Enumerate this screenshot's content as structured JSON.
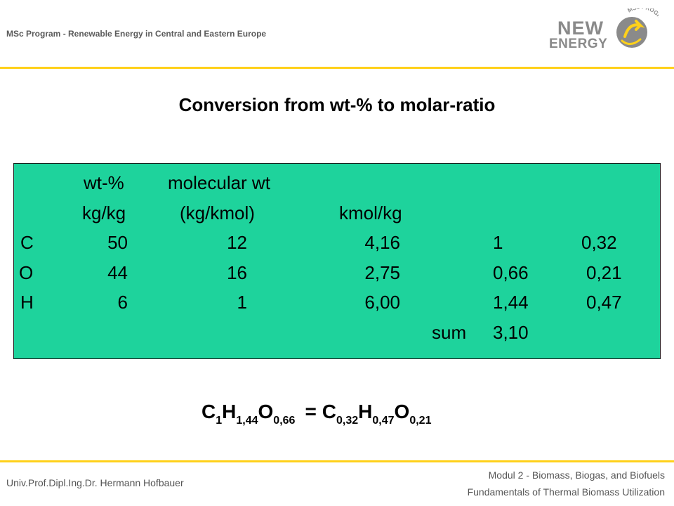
{
  "header": {
    "program": "MSc Program - Renewable Energy in Central and Eastern Europe",
    "logo_line1": "NEW",
    "logo_line2": "ENERGY",
    "logo_badge": "MSc PROGRAM"
  },
  "title": "Conversion from wt-% to molar-ratio",
  "table": {
    "header_row1": [
      "wt-%",
      "molecular wt"
    ],
    "header_row2": [
      "kg/kg",
      "(kg/kmol)",
      "kmol/kg"
    ],
    "rows": [
      {
        "element": "C",
        "wt": "50",
        "mw": "12",
        "kmol": "4,16",
        "ratio1": "1",
        "ratio2": "0,32"
      },
      {
        "element": "O",
        "wt": "44",
        "mw": "16",
        "kmol": "2,75",
        "ratio1": "0,66",
        "ratio2": "0,21"
      },
      {
        "element": "H",
        "wt": "6",
        "mw": "1",
        "kmol": "6,00",
        "ratio1": "1,44",
        "ratio2": "0,47"
      }
    ],
    "sum_label": "sum",
    "sum_value": "3,10"
  },
  "formula": {
    "left": [
      {
        "sym": "C",
        "sub": "1"
      },
      {
        "sym": "H",
        "sub": "1,44"
      },
      {
        "sym": "O",
        "sub": "0,66"
      }
    ],
    "equals": "=",
    "right": [
      {
        "sym": "C",
        "sub": "0,32"
      },
      {
        "sym": "H",
        "sub": "0,47"
      },
      {
        "sym": "O",
        "sub": "0,21"
      }
    ]
  },
  "footer": {
    "author": "Univ.Prof.Dipl.Ing.Dr. Hermann Hofbauer",
    "module": "Modul 2 - Biomass, Biogas, and Biofuels",
    "course": "Fundamentals of Thermal Biomass Utilization"
  },
  "colors": {
    "accent_yellow": "#ffd11a",
    "table_green": "#1ed39c",
    "logo_gray": "#8a8a8a"
  }
}
